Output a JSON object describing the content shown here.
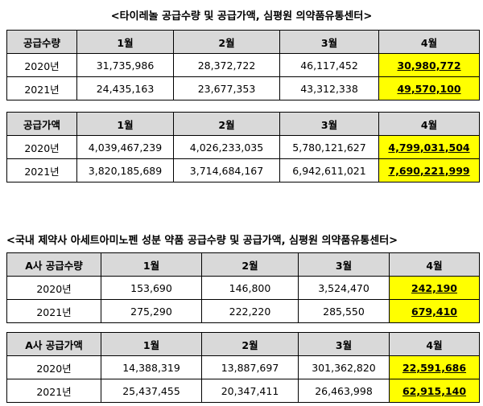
{
  "title1": "<타이레놀 공급수량 및 공급가액, 심평원 의약품유통센터>",
  "title2": "<국내 제약사 아세트아미노펜 성분 약품 공급수량 및 공급가액, 심평원 의약품유통센터>",
  "tables": [
    {
      "header": [
        "공급수량",
        "1월",
        "2월",
        "3월",
        "4월"
      ],
      "rows": [
        [
          "2020년",
          "31,735,986",
          "28,372,722",
          "46,117,452",
          "30,980,772"
        ],
        [
          "2021년",
          "24,435,163",
          "23,677,353",
          "43,312,338",
          "49,570,100"
        ]
      ]
    },
    {
      "header": [
        "공급가액",
        "1월",
        "2월",
        "3월",
        "4월"
      ],
      "rows": [
        [
          "2020년",
          "4,039,467,239",
          "4,026,233,035",
          "5,780,121,627",
          "4,799,031,504"
        ],
        [
          "2021년",
          "3,820,185,689",
          "3,714,684,167",
          "6,942,611,021",
          "7,690,221,999"
        ]
      ]
    },
    {
      "header": [
        "A사 공급수량",
        "1월",
        "2월",
        "3월",
        "4월"
      ],
      "rows": [
        [
          "2020년",
          "153,690",
          "146,800",
          "3,524,470",
          "242,190"
        ],
        [
          "2021년",
          "275,290",
          "222,220",
          "285,550",
          "679,410"
        ]
      ]
    },
    {
      "header": [
        "A사 공급가액",
        "1월",
        "2월",
        "3월",
        "4월"
      ],
      "rows": [
        [
          "2020년",
          "14,388,319",
          "13,887,697",
          "301,362,820",
          "22,591,686"
        ],
        [
          "2021년",
          "25,437,455",
          "20,347,411",
          "26,463,998",
          "62,915,140"
        ]
      ]
    }
  ]
}
